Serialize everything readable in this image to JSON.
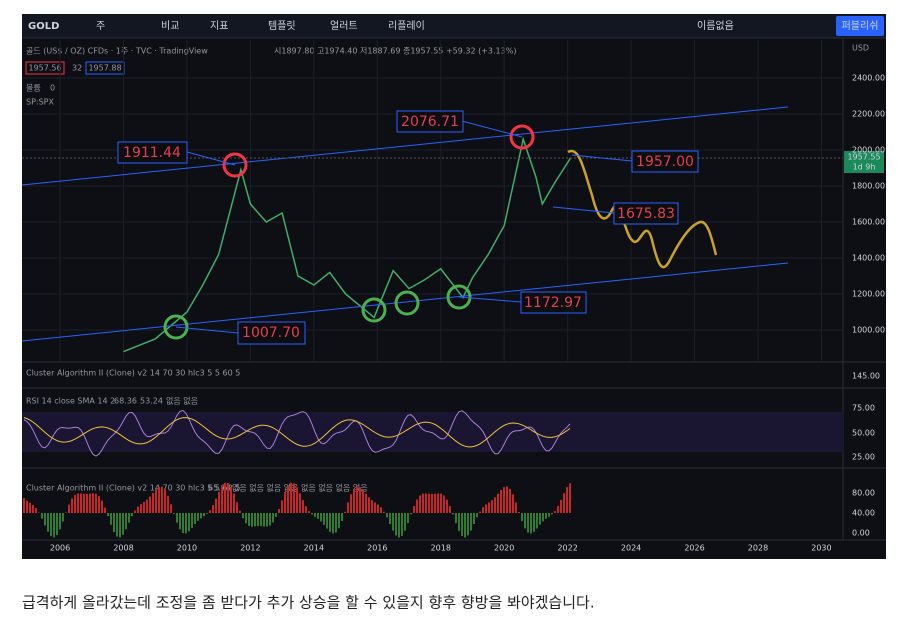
{
  "toolbar": {
    "symbol": "GOLD",
    "interval": "주",
    "compare": "비교",
    "indicators": "지표",
    "templates": "템플릿",
    "alert": "얼러트",
    "replay": "리플레이",
    "layout_name": "이름없음",
    "publish": "퍼블리쉬"
  },
  "legend": {
    "title": "골드 (US$ / OZ) CFDs · 1주 · TVC · TradingView",
    "ohlc": "시1897.80 고1974.40 저1887.69 종1957.55 +59.32 (+3.13%)",
    "bid": "1957.56",
    "spread": "32",
    "ask": "1957.88",
    "volume": "볼륨",
    "volume_value": "0",
    "compare_symbol": "SP:SPX"
  },
  "chart_data": {
    "type": "line",
    "color": "#3fae6a",
    "x": [
      2008,
      2009,
      2010,
      2010.5,
      2011,
      2011.7,
      2012,
      2012.5,
      2013,
      2013.5,
      2014,
      2014.5,
      2015,
      2015.9,
      2016.5,
      2017,
      2017.5,
      2018,
      2018.7,
      2019,
      2019.5,
      2020,
      2020.6,
      2021,
      2021.2,
      2021.6,
      2022.1
    ],
    "values": [
      880,
      950,
      1100,
      1250,
      1420,
      1890,
      1700,
      1600,
      1650,
      1300,
      1250,
      1320,
      1200,
      1070,
      1330,
      1230,
      1280,
      1340,
      1180,
      1290,
      1420,
      1580,
      2060,
      1850,
      1700,
      1820,
      1957.55
    ],
    "xlim": [
      2004.8,
      2030.68
    ],
    "xticks": [
      2006,
      2008,
      2010,
      2012,
      2014,
      2016,
      2018,
      2020,
      2022,
      2024,
      2026,
      2028,
      2030
    ],
    "ylim": [
      822,
      2611
    ],
    "yticks": [
      {
        "value": 1000,
        "label": "1000.00"
      },
      {
        "value": 1200,
        "label": "1200.00"
      },
      {
        "value": 1400,
        "label": "1400.00"
      },
      {
        "value": 1600,
        "label": "1600.00"
      },
      {
        "value": 1800,
        "label": "1800.00"
      },
      {
        "value": 2000,
        "label": "2000.00"
      },
      {
        "value": 2200,
        "label": "2200.00"
      },
      {
        "value": 2400,
        "label": "2400.00"
      }
    ],
    "currency": "USD",
    "last_price": "1957.55",
    "countdown": "1d 9h",
    "annotations": [
      "1911.44",
      "2076.71",
      "1957.00",
      "1675.83",
      "1172.97",
      "1007.70"
    ]
  },
  "panels": {
    "cluster_top": {
      "title": "Cluster Algorithm II (Clone) v2 14 70 30 hlc3 5 5 60 5",
      "tick": "145.00"
    },
    "rsi": {
      "title": "RSI 14 close SMA 14 2",
      "rsi_value": "68.36",
      "sma_value": "53.24",
      "extra": "없음 없음",
      "ticks": [
        "75.00",
        "50.00",
        "25.00"
      ]
    },
    "cluster": {
      "title": "Cluster Algorithm II (Clone) v2 14 70 30 hlc3 5 5 60 5",
      "value": "65.94",
      "extra": "없음 없음 없음 없음 없음 없음 없음 없음",
      "ticks": [
        "80.00",
        "40.00",
        "0.00"
      ]
    }
  },
  "caption": "급격하게 올라갔는데 조정을 좀 받다가 추가 상승을 할 수 있을지 향후 향방을 봐야겠습니다."
}
